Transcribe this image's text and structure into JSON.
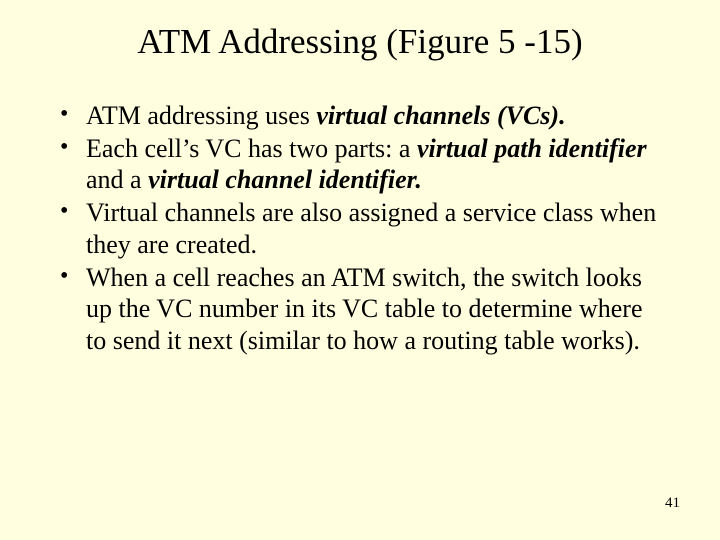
{
  "background_color": "#ffffe0",
  "text_color": "#000000",
  "title_fontsize": 35,
  "body_fontsize": 26,
  "page_num_fontsize": 15,
  "slide": {
    "title": "ATM Addressing (Figure 5 -15)",
    "bullets": [
      {
        "pre": "ATM addressing uses ",
        "em1": "virtual channels (VCs).",
        "mid": "",
        "em2": "",
        "post": ""
      },
      {
        "pre": "Each cell’s VC has two parts: a ",
        "em1": "virtual path identifier",
        "mid": " and a ",
        "em2": "virtual channel identifier.",
        "post": ""
      },
      {
        "pre": "Virtual channels are also assigned a service class when they are created.",
        "em1": "",
        "mid": "",
        "em2": "",
        "post": ""
      },
      {
        "pre": "When a cell reaches an ATM switch, the switch looks up the VC number in its VC table to determine where to send it next (similar to how a routing table works).",
        "em1": "",
        "mid": "",
        "em2": "",
        "post": ""
      }
    ],
    "page_number": "41"
  }
}
